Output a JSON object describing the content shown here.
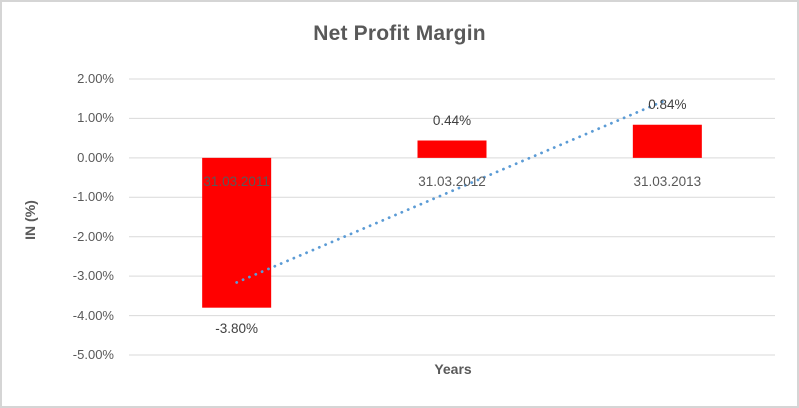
{
  "chart": {
    "title": "Net Profit Margin",
    "y_axis_title": "IN (%)",
    "x_axis_title": "Years",
    "colors": {
      "bar": "#ff0000",
      "trendline": "#5b9bd5",
      "gridline": "#d9d9d9",
      "title_text": "#595959",
      "data_label_text": "#404040",
      "border": "#d5d5d5"
    }
  },
  "chart_data": {
    "type": "bar",
    "title": "Net Profit Margin",
    "xlabel": "Years",
    "ylabel": "IN (%)",
    "categories": [
      "31.03.2011",
      "31.03.2012",
      "31.03.2013"
    ],
    "values": [
      -3.8,
      0.44,
      0.84
    ],
    "data_labels": [
      "-3.80%",
      "0.44%",
      "0.84%"
    ],
    "y_ticks": [
      {
        "value": 2,
        "label": "2.00%"
      },
      {
        "value": 1,
        "label": "1.00%"
      },
      {
        "value": 0,
        "label": "0.00%"
      },
      {
        "value": -1,
        "label": "-1.00%"
      },
      {
        "value": -2,
        "label": "-2.00%"
      },
      {
        "value": -3,
        "label": "-3.00%"
      },
      {
        "value": -4,
        "label": "-4.00%"
      },
      {
        "value": -5,
        "label": "-5.00%"
      }
    ],
    "ylim": [
      -5,
      2
    ],
    "grid": true,
    "legend": false,
    "trendline": {
      "type": "linear",
      "style": "dotted",
      "values": [
        -3.16,
        -0.84,
        1.48
      ]
    }
  }
}
